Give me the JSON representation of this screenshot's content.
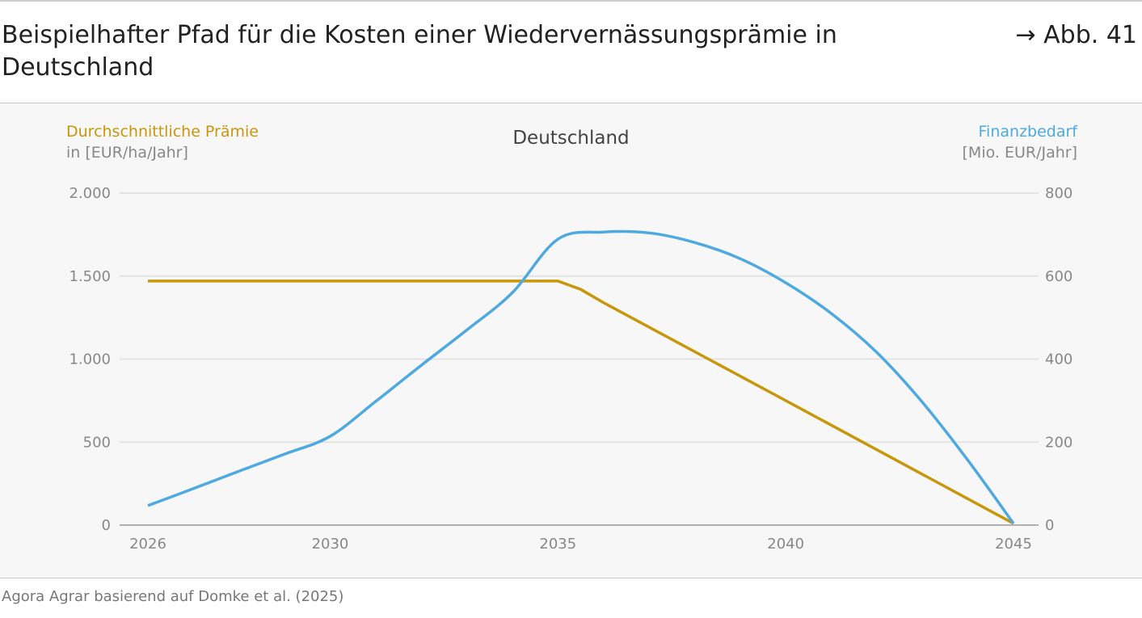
{
  "header": {
    "title": "Beispielhafter Pfad für die Kosten einer Wiedervernässungsprämie in Deutschland",
    "figure_ref": "→ Abb. 41"
  },
  "source": "Agora Agrar basierend auf Domke et al. (2025)",
  "chart_data": {
    "type": "line",
    "title": "Deutschland",
    "left_axis": {
      "label": "Durchschnittliche Prämie",
      "unit": "in [EUR/ha/Jahr]",
      "ylim": [
        0,
        2000
      ],
      "ticks": [
        "0",
        "500",
        "1.000",
        "1.500",
        "2.000"
      ],
      "tick_values": [
        0,
        500,
        1000,
        1500,
        2000
      ]
    },
    "right_axis": {
      "label": "Finanzbedarf",
      "unit": "[Mio. EUR/Jahr]",
      "ylim": [
        0,
        800
      ],
      "ticks": [
        "0",
        "200",
        "400",
        "600",
        "800"
      ],
      "tick_values": [
        0,
        200,
        400,
        600,
        800
      ]
    },
    "x_ticks": [
      "2026",
      "2030",
      "2035",
      "2040",
      "2045"
    ],
    "xlim": [
      2026,
      2045
    ],
    "grid": true,
    "colors": {
      "praemie": "#c8960a",
      "finanzbedarf": "#4ea9e0"
    },
    "series": [
      {
        "name": "Durchschnittliche Prämie",
        "axis": "left",
        "x": [
          2026,
          2030,
          2035,
          2035.5,
          2036,
          2040,
          2045
        ],
        "values": [
          1470,
          1470,
          1470,
          1420,
          1340,
          750,
          10
        ]
      },
      {
        "name": "Finanzbedarf",
        "axis": "right",
        "x": [
          2026,
          2027,
          2028,
          2029,
          2030,
          2031,
          2032,
          2033,
          2034,
          2035,
          2036,
          2037,
          2038,
          2039,
          2040,
          2041,
          2042,
          2043,
          2044,
          2045
        ],
        "values": [
          47,
          88,
          130,
          171,
          214,
          298,
          385,
          470,
          560,
          689,
          706,
          704,
          681,
          642,
          584,
          510,
          416,
          296,
          156,
          4
        ]
      }
    ]
  }
}
